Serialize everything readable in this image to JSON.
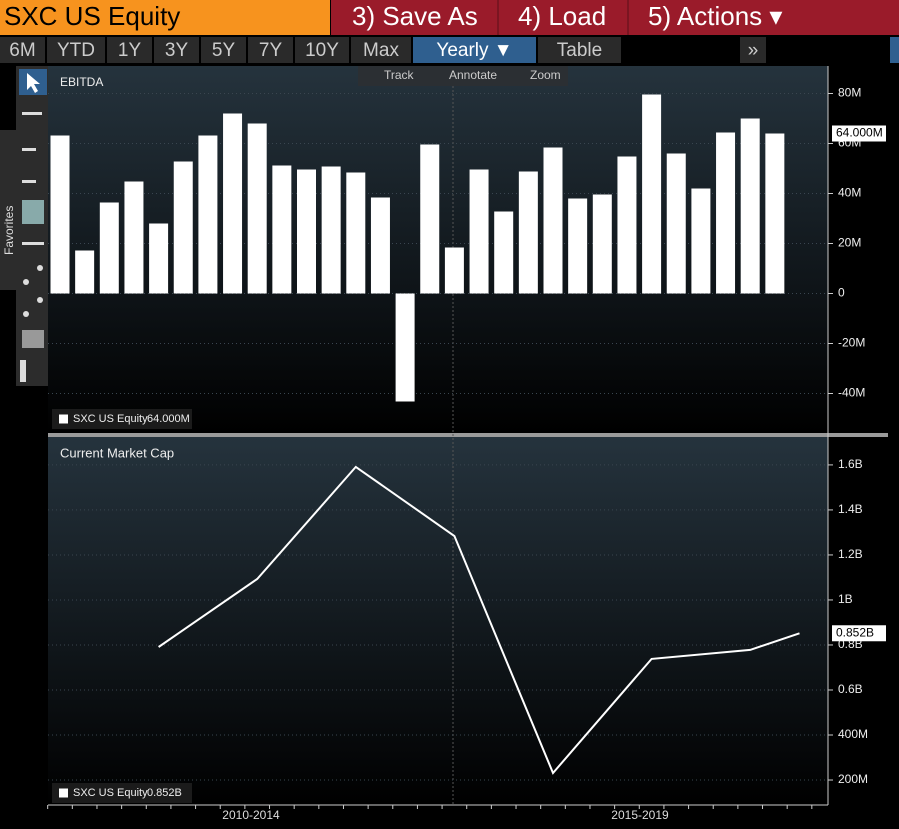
{
  "header": {
    "ticker": "SXC US Equity",
    "menu": [
      "3) Save As",
      "4) Load",
      "5) Actions ▾"
    ],
    "tabs": [
      "6M",
      "YTD",
      "1Y",
      "3Y",
      "5Y",
      "7Y",
      "10Y",
      "Max",
      "Yearly ▼",
      "Table",
      "»"
    ],
    "tools": [
      "Track",
      "Annotate",
      "Zoom"
    ],
    "sidebar": "Favorites",
    "periods": [
      "2010-2014",
      "2015-2019"
    ]
  },
  "chart_data": [
    {
      "type": "bar",
      "title": "EBITDA",
      "legend_name": "SXC US Equity",
      "last_value_label": "64.000M",
      "color": "#ffffff",
      "categories": [
        null,
        null,
        null,
        null,
        null,
        null,
        null,
        null,
        null,
        null,
        null,
        null,
        null,
        null,
        null,
        null,
        null,
        null,
        null,
        null,
        null,
        null,
        null,
        null,
        null,
        null,
        null,
        null,
        null,
        null
      ],
      "values": [
        63.2,
        17.2,
        36.4,
        44.8,
        28,
        52.8,
        63.2,
        72,
        68,
        51.2,
        49.6,
        50.8,
        48.4,
        38.4,
        -43.2,
        59.6,
        18.4,
        49.6,
        32.8,
        48.8,
        58.4,
        38,
        39.6,
        54.8,
        79.6,
        56,
        42,
        64.4,
        70,
        64
      ],
      "ylim": [
        -55,
        91
      ],
      "yticks": [
        {
          "value": -40,
          "label": "-40M"
        },
        {
          "value": -20,
          "label": "-20M"
        },
        0,
        {
          "value": 20,
          "label": "20M"
        },
        {
          "value": 40,
          "label": "40M"
        },
        {
          "value": 60,
          "label": "60M"
        },
        {
          "value": 80,
          "label": "80M"
        }
      ],
      "grid": true
    },
    {
      "type": "line",
      "title": "Current Market Cap",
      "legend_name": "SXC US Equity",
      "last_value_label": "0.852B",
      "color": "#ffffff",
      "categories": [
        null,
        null,
        null,
        null,
        null,
        null,
        null,
        null
      ],
      "values": [
        791,
        1093,
        1591,
        1284,
        231,
        738,
        778,
        852
      ],
      "ylim": [
        89,
        1724
      ],
      "yticks": [
        {
          "value": 200,
          "label": "200M"
        },
        {
          "value": 400,
          "label": "400M"
        },
        {
          "value": 600,
          "label": "0.6B"
        },
        {
          "value": 800,
          "label": "0.8B"
        },
        {
          "value": 1000,
          "label": "1B"
        },
        {
          "value": 1200,
          "label": "1.2B"
        },
        {
          "value": 1400,
          "label": "1.4B"
        },
        {
          "value": 1600,
          "label": "1.6B"
        }
      ],
      "grid": true
    }
  ]
}
